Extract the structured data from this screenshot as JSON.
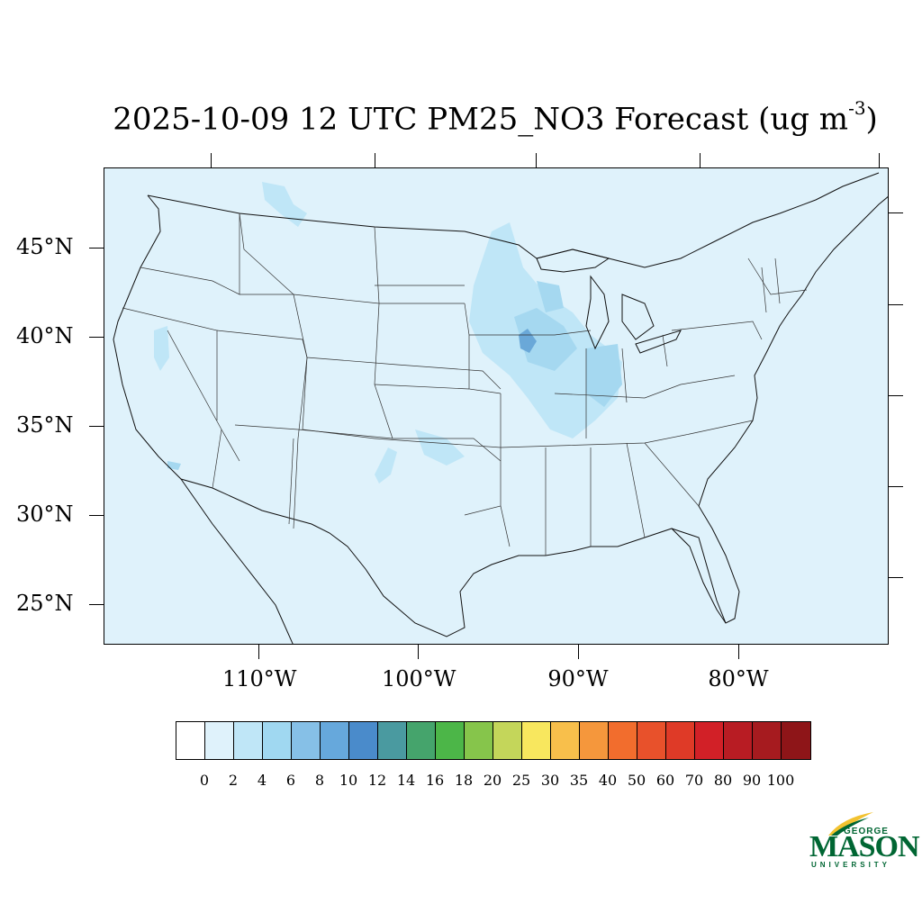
{
  "title": {
    "text": "2025-10-09 12 UTC PM25_NO3 Forecast (ug m",
    "superscript": "-3",
    "suffix": ")"
  },
  "map": {
    "lat_labels": [
      "45°N",
      "40°N",
      "35°N",
      "30°N",
      "25°N"
    ],
    "lon_labels": [
      "110°W",
      "100°W",
      "90°W",
      "80°W"
    ],
    "background_color": "#dff2fb",
    "plume_colors": [
      "#bfe6f7",
      "#a5d8f0",
      "#8cc6e8",
      "#6aa8d8"
    ]
  },
  "colorbar": {
    "labels": [
      "0",
      "2",
      "4",
      "6",
      "8",
      "10",
      "12",
      "14",
      "16",
      "18",
      "20",
      "25",
      "30",
      "35",
      "40",
      "50",
      "60",
      "70",
      "80",
      "90",
      "100"
    ],
    "colors": [
      "#ffffff",
      "#dff2fb",
      "#bfe6f7",
      "#a0d8f1",
      "#86c0e7",
      "#66a8dc",
      "#4a8bcb",
      "#4a9aa0",
      "#45a46c",
      "#4cb648",
      "#86c54b",
      "#c4d65a",
      "#f8e75e",
      "#f8bf4b",
      "#f5973c",
      "#f26d2d",
      "#e8512b",
      "#df3a27",
      "#d22027",
      "#b81c23",
      "#a61b1f",
      "#8e1518"
    ]
  },
  "logo": {
    "line1": "GEORGE",
    "line2": "MASON",
    "line3": "UNIVERSITY",
    "color": "#006633",
    "accent": "#f2c230"
  }
}
